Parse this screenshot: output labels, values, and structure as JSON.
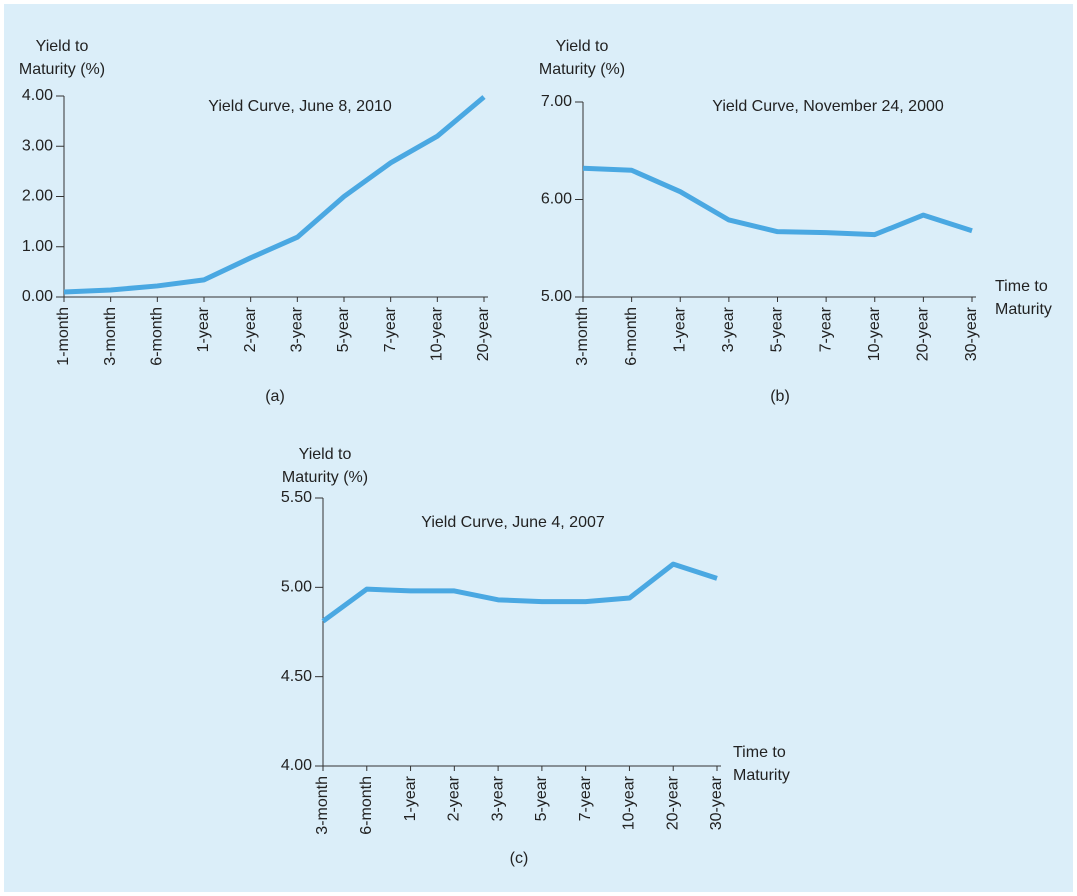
{
  "chart_data": [
    {
      "type": "line",
      "title": "Yield Curve, June 8, 2010",
      "y_label": [
        "Yield to",
        "Maturity (%)"
      ],
      "panel": "(a)",
      "categories": [
        "1-month",
        "3-month",
        "6-month",
        "1-year",
        "2-year",
        "3-year",
        "5-year",
        "7-year",
        "10-year",
        "20-year"
      ],
      "series": [
        {
          "color": "#4aa8e2",
          "values": [
            0.1,
            0.14,
            0.22,
            0.34,
            0.78,
            1.19,
            2.0,
            2.67,
            3.2,
            3.98
          ]
        }
      ],
      "ylim": [
        0,
        4
      ],
      "yticks": [
        {
          "value": 0,
          "label": "0.00"
        },
        {
          "value": 1,
          "label": "1.00"
        },
        {
          "value": 2,
          "label": "2.00"
        },
        {
          "value": 3,
          "label": "3.00"
        },
        {
          "value": 4,
          "label": "4.00"
        }
      ]
    },
    {
      "type": "line",
      "title": "Yield Curve, November 24, 2000",
      "y_label": [
        "Yield to",
        "Maturity (%)"
      ],
      "x_label": [
        "Time to",
        "Maturity"
      ],
      "panel": "(b)",
      "categories": [
        "3-month",
        "6-month",
        "1-year",
        "3-year",
        "5-year",
        "7-year",
        "10-year",
        "20-year",
        "30-year"
      ],
      "series": [
        {
          "color": "#4aa8e2",
          "values": [
            6.32,
            6.3,
            6.08,
            5.79,
            5.67,
            5.66,
            5.64,
            5.84,
            5.68
          ]
        }
      ],
      "ylim": [
        5,
        7
      ],
      "yticks": [
        {
          "value": 5,
          "label": "5.00"
        },
        {
          "value": 6,
          "label": "6.00"
        },
        {
          "value": 7,
          "label": "7.00"
        }
      ]
    },
    {
      "type": "line",
      "title": "Yield Curve, June 4, 2007",
      "y_label": [
        "Yield to",
        "Maturity (%)"
      ],
      "x_label": [
        "Time to",
        "Maturity"
      ],
      "panel": "(c)",
      "categories": [
        "3-month",
        "6-month",
        "1-year",
        "2-year",
        "3-year",
        "5-year",
        "7-year",
        "10-year",
        "20-year",
        "30-year"
      ],
      "series": [
        {
          "color": "#4aa8e2",
          "values": [
            4.81,
            4.99,
            4.98,
            4.98,
            4.93,
            4.92,
            4.92,
            4.94,
            5.13,
            5.05
          ]
        }
      ],
      "ylim": [
        4,
        5.5
      ],
      "yticks": [
        {
          "value": 4,
          "label": "4.00"
        },
        {
          "value": 4.5,
          "label": "4.50"
        },
        {
          "value": 5,
          "label": "5.00"
        },
        {
          "value": 5.5,
          "label": "5.50"
        }
      ]
    }
  ]
}
